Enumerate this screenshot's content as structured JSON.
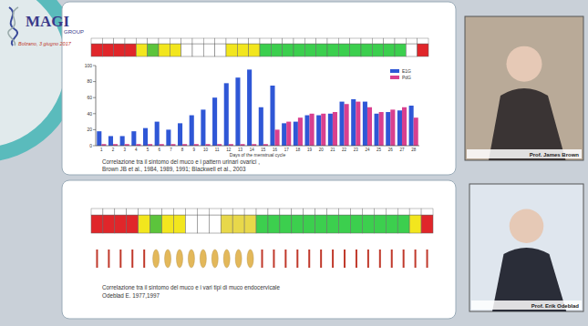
{
  "chart_data": {
    "type": "bar",
    "x_label": "Days of the menstrual cycle",
    "categories": [
      "1",
      "2",
      "3",
      "4",
      "5",
      "6",
      "7",
      "8",
      "9",
      "10",
      "11",
      "12",
      "13",
      "14",
      "15",
      "16",
      "17",
      "18",
      "19",
      "20",
      "21",
      "22",
      "23",
      "24",
      "25",
      "26",
      "27",
      "28"
    ],
    "series": [
      {
        "name": "E1G",
        "color": "#2f57d6",
        "values": [
          18,
          12,
          12,
          18,
          22,
          30,
          20,
          28,
          38,
          45,
          60,
          78,
          85,
          95,
          48,
          75,
          28,
          30,
          38,
          38,
          40,
          55,
          58,
          55,
          40,
          42,
          44,
          50
        ]
      },
      {
        "name": "PdG",
        "color": "#d9408f",
        "values": [
          2,
          2,
          2,
          2,
          2,
          2,
          2,
          2,
          2,
          2,
          2,
          2,
          2,
          2,
          2,
          20,
          30,
          35,
          40,
          40,
          42,
          52,
          55,
          48,
          42,
          45,
          48,
          35
        ]
      }
    ],
    "ylim": [
      0,
      100
    ],
    "yticks": [
      0,
      20,
      40,
      60,
      80,
      100
    ],
    "legend": "top-right",
    "grid": false
  },
  "slide": {
    "logo": {
      "name": "MAGI",
      "subtitle": "GROUP",
      "event": "Bolzano, 3 giugno 2017"
    },
    "top_panel": {
      "strip_colors": [
        "#e0262a",
        "#e0262a",
        "#e0262a",
        "#e0262a",
        "#f2e61e",
        "#5cc43c",
        "#f2e61e",
        "#f2e61e",
        "#ffffff",
        "#ffffff",
        "#ffffff",
        "#ffffff",
        "#f2e61e",
        "#f2e61e",
        "#f2e61e",
        "#3ccf4e",
        "#3ccf4e",
        "#3ccf4e",
        "#3ccf4e",
        "#3ccf4e",
        "#3ccf4e",
        "#3ccf4e",
        "#3ccf4e",
        "#3ccf4e",
        "#3ccf4e",
        "#3ccf4e",
        "#3ccf4e",
        "#3ccf4e",
        "#ffffff",
        "#e0262a"
      ],
      "caption": [
        "Correlazione tra il sintomo del muco e i pattern urinari ovarici ,",
        "Brown JB et al., 1984, 1989, 1991; Blackwell et al., 2003"
      ],
      "photo_label": "Prof. James Brown"
    },
    "bottom_panel": {
      "strip_colors": [
        "#e0262a",
        "#e0262a",
        "#e0262a",
        "#e0262a",
        "#f2e61e",
        "#5cc43c",
        "#f2e61e",
        "#f2e61e",
        "#ffffff",
        "#ffffff",
        "#ffffff",
        "#e8d84a",
        "#e8d84a",
        "#e8d84a",
        "#3ccf4e",
        "#3ccf4e",
        "#3ccf4e",
        "#3ccf4e",
        "#3ccf4e",
        "#3ccf4e",
        "#3ccf4e",
        "#3ccf4e",
        "#3ccf4e",
        "#3ccf4e",
        "#3ccf4e",
        "#3ccf4e",
        "#3ccf4e",
        "#f2e61e",
        "#e0262a"
      ],
      "mucus_markers": [
        "line",
        "line",
        "line",
        "line",
        "line",
        "blob",
        "blob",
        "blob",
        "blob",
        "blob",
        "blob",
        "blob",
        "blob",
        "blob",
        "line",
        "line",
        "line",
        "line",
        "line",
        "line",
        "line",
        "line",
        "line",
        "line",
        "line",
        "line",
        "line",
        "line",
        "line"
      ],
      "mucus_colors": [
        "#c0392b",
        "#c0392b",
        "#c0392b",
        "#c0392b",
        "#c0392b",
        "#e3b85a",
        "#e3b85a",
        "#e3b85a",
        "#e3b85a",
        "#e3b85a",
        "#e3b85a",
        "#e3b85a",
        "#e3b85a",
        "#e3b85a",
        "#c0392b",
        "#c0392b",
        "#c0392b",
        "#c0392b",
        "#c0392b",
        "#c0392b",
        "#c0392b",
        "#c0392b",
        "#c0392b",
        "#c0392b",
        "#c0392b",
        "#c0392b",
        "#c0392b",
        "#c0392b",
        "#c0392b"
      ],
      "caption": [
        "Correlazione tra il sintomo del muco e i vari tipi di muco endocervicale",
        "Odeblad E. 1977,1997"
      ],
      "photo_label": "Prof. Erik Odeblad"
    }
  }
}
